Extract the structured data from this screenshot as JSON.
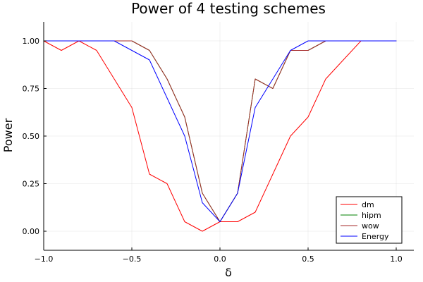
{
  "chart_data": {
    "type": "line",
    "title": "Power of 4 testing schemes",
    "xlabel": "δ",
    "ylabel": "Power",
    "xlim": [
      -1.0,
      1.1
    ],
    "ylim": [
      -0.1,
      1.1
    ],
    "xticks": [
      -1.0,
      -0.5,
      0.0,
      0.5,
      1.0
    ],
    "xtick_labels": [
      "−1.0",
      "−0.5",
      "0.0",
      "0.5",
      "1.0"
    ],
    "yticks": [
      0.0,
      0.25,
      0.5,
      0.75,
      1.0
    ],
    "ytick_labels": [
      "0.00",
      "0.25",
      "0.50",
      "0.75",
      "1.00"
    ],
    "grid": true,
    "legend_position": "bottom-right",
    "x": [
      -1.0,
      -0.9,
      -0.8,
      -0.7,
      -0.6,
      -0.5,
      -0.4,
      -0.3,
      -0.2,
      -0.1,
      0.0,
      0.1,
      0.2,
      0.3,
      0.4,
      0.5,
      0.6,
      0.7,
      0.8,
      0.9,
      1.0
    ],
    "series": [
      {
        "name": "dm",
        "color": "#ff0000",
        "values": [
          1.0,
          0.95,
          1.0,
          0.95,
          0.8,
          0.65,
          0.3,
          0.25,
          0.05,
          0.0,
          0.05,
          0.05,
          0.1,
          0.3,
          0.5,
          0.6,
          0.8,
          0.9,
          1.0,
          1.0,
          1.0
        ]
      },
      {
        "name": "hipm",
        "color": "#008000",
        "values": [
          1.0,
          1.0,
          1.0,
          1.0,
          1.0,
          1.0,
          0.95,
          0.8,
          0.6,
          0.2,
          0.05,
          0.2,
          0.8,
          0.75,
          0.95,
          0.95,
          1.0,
          1.0,
          1.0,
          1.0,
          1.0
        ]
      },
      {
        "name": "wow",
        "color": "#a52a2a",
        "values": [
          1.0,
          1.0,
          1.0,
          1.0,
          1.0,
          1.0,
          0.95,
          0.8,
          0.6,
          0.2,
          0.05,
          0.2,
          0.8,
          0.75,
          0.95,
          0.95,
          1.0,
          1.0,
          1.0,
          1.0,
          1.0
        ]
      },
      {
        "name": "Energy",
        "color": "#0000ff",
        "values": [
          1.0,
          1.0,
          1.0,
          1.0,
          1.0,
          0.95,
          0.9,
          0.7,
          0.5,
          0.15,
          0.05,
          0.2,
          0.65,
          0.8,
          0.95,
          1.0,
          1.0,
          1.0,
          1.0,
          1.0,
          1.0
        ]
      }
    ]
  }
}
